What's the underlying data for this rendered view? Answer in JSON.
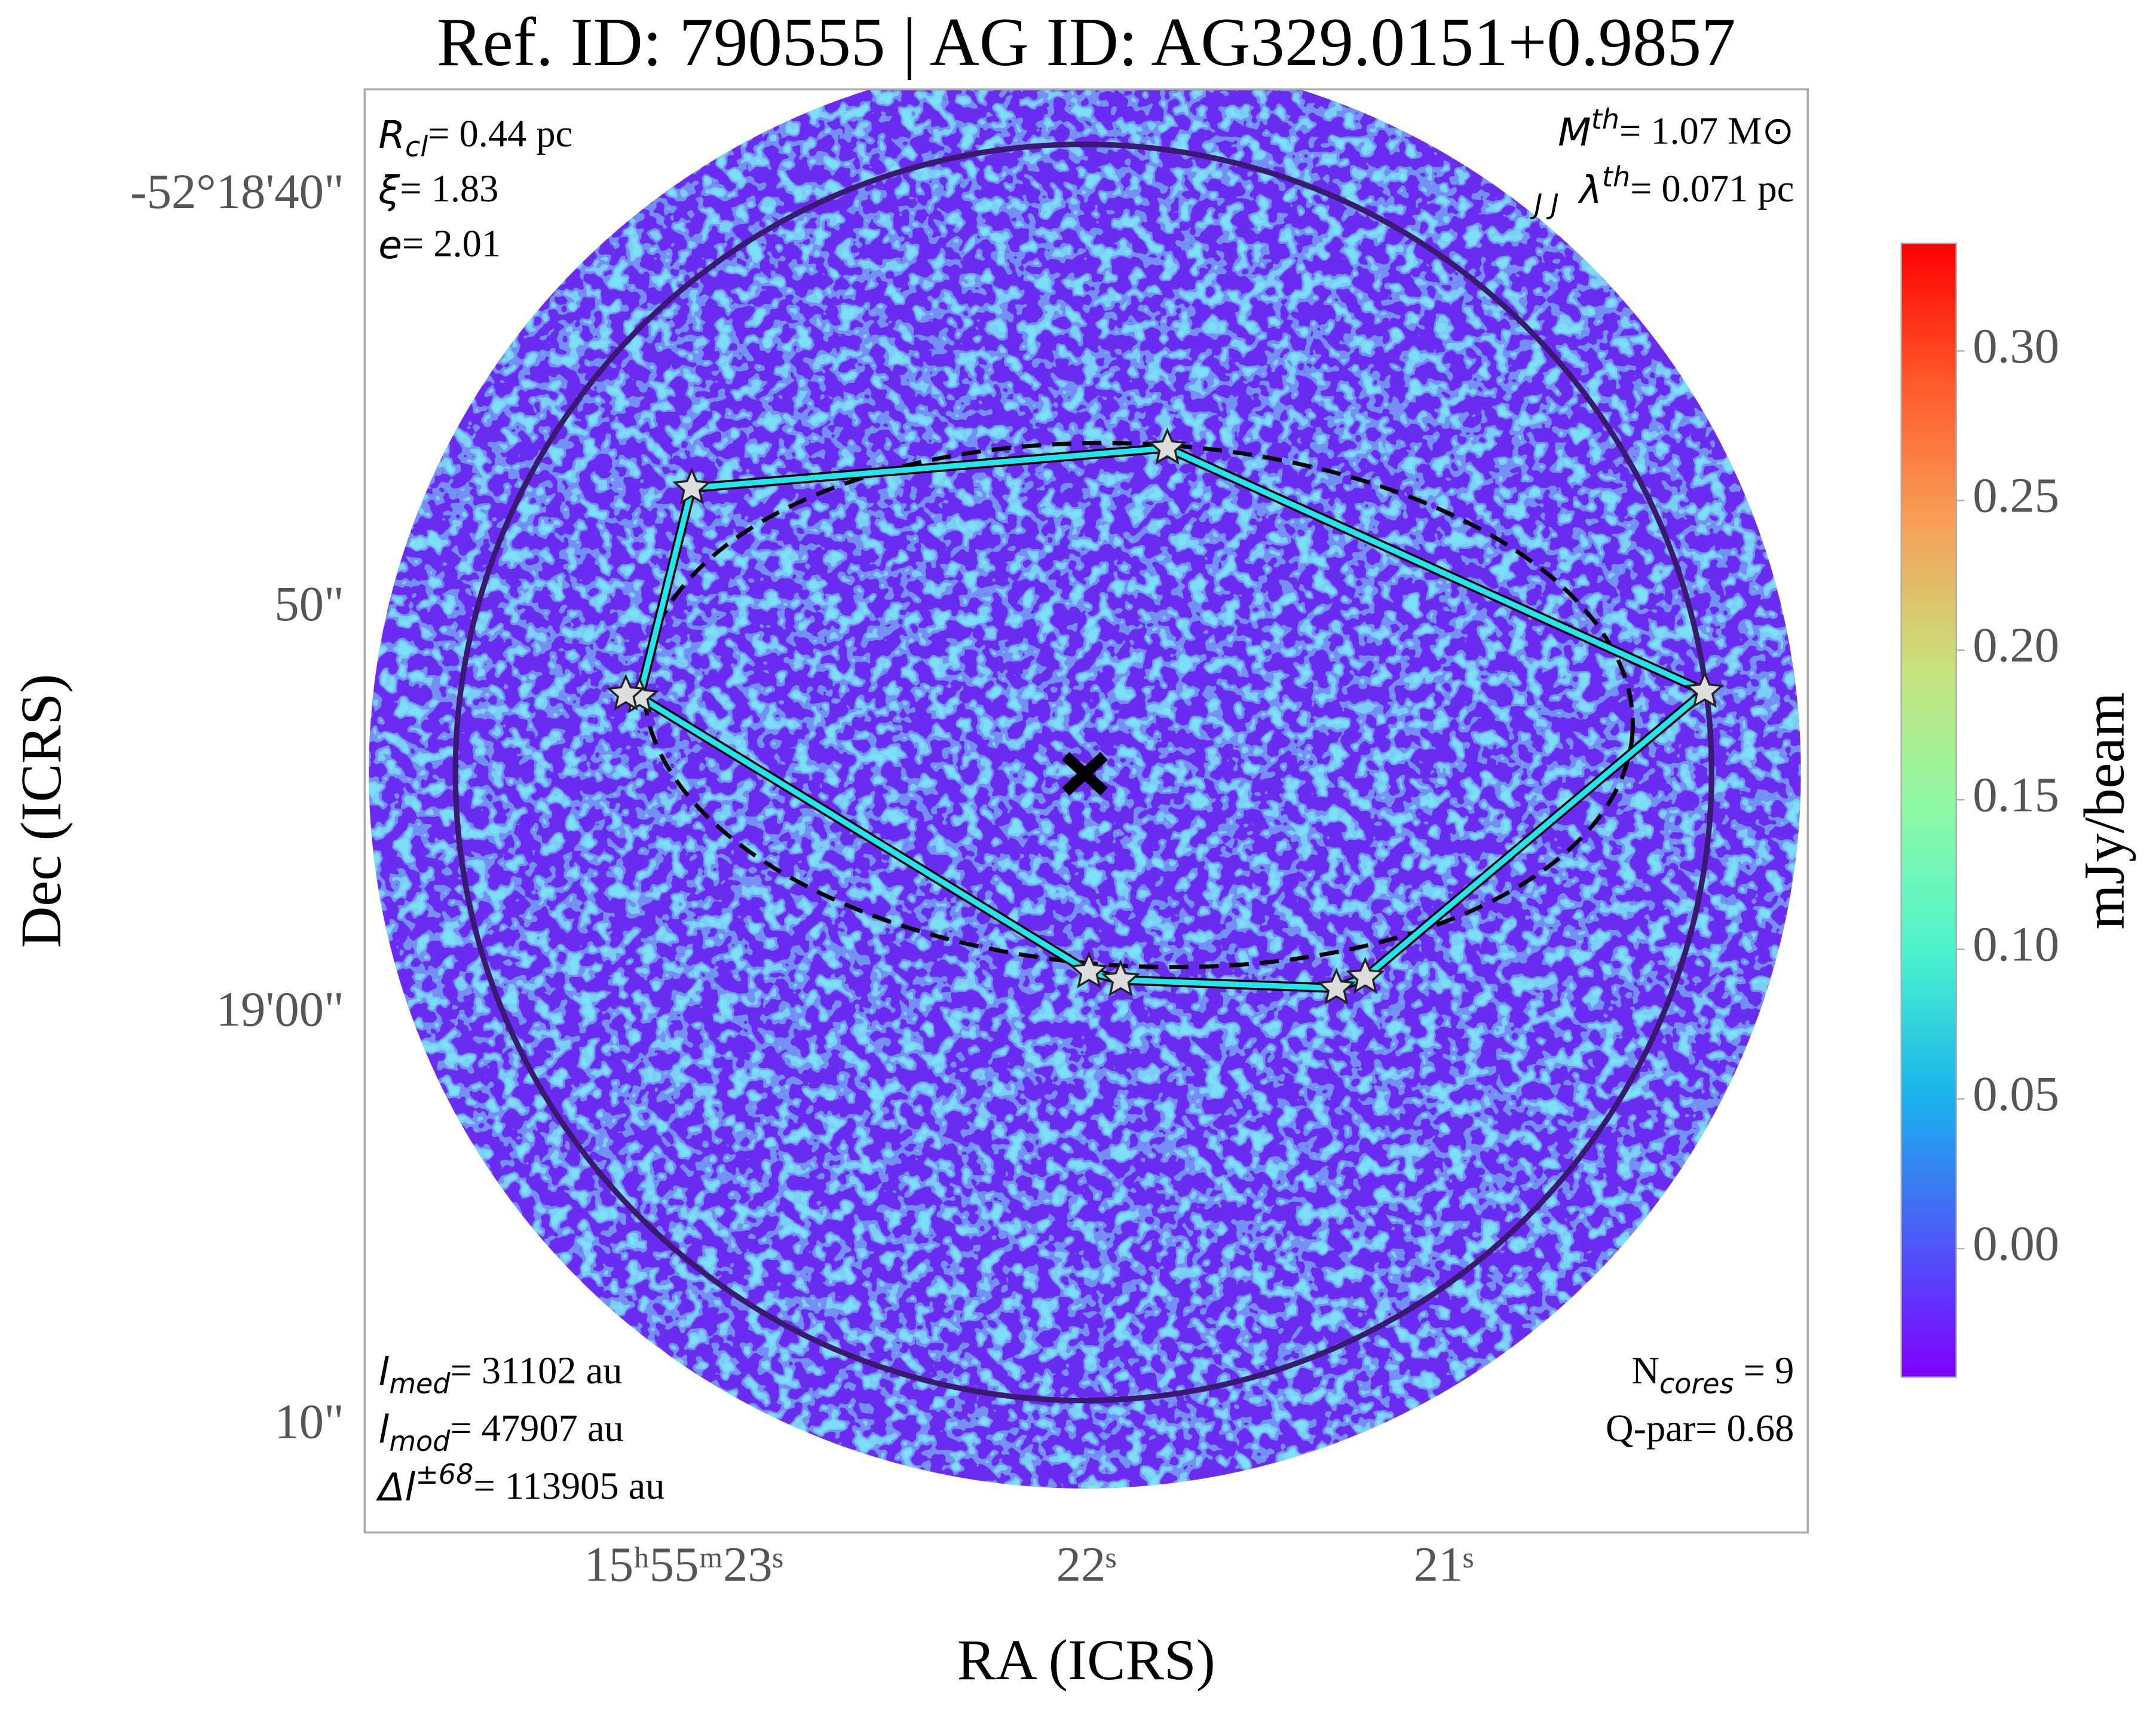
{
  "chart_data": {
    "type": "image",
    "title": "Ref. ID: 790555 | AG ID: AG329.0151+0.9857",
    "xlabel": "RA (ICRS)",
    "ylabel": "Dec (ICRS)",
    "xtick_labels": [
      "15ʰ55ᵐ23ˢ",
      "22ˢ",
      "21ˢ"
    ],
    "ytick_labels": [
      "-52°18'40\"",
      "50\"",
      "19'00\"",
      "10\""
    ],
    "annotations_top_left": [
      {
        "symbol": "R",
        "sub": "cl",
        "text": "= 0.44 pc"
      },
      {
        "symbol": "ξ",
        "text": "= 1.83"
      },
      {
        "symbol": "e",
        "text": "= 2.01"
      }
    ],
    "annotations_top_right": [
      {
        "symbol": "M",
        "sub": "J",
        "sup": "th",
        "text": "= 1.07 M⊙"
      },
      {
        "symbol": "λ",
        "sub": "J",
        "sup": "th",
        "text": "= 0.071 pc"
      }
    ],
    "annotations_bottom_left": [
      {
        "symbol": "l",
        "sub": "med",
        "text": "= 31102 au"
      },
      {
        "symbol": "l",
        "sub": "mod",
        "text": "= 47907 au"
      },
      {
        "symbol": "Δl",
        "sup": "±68",
        "text": "= 113905 au"
      }
    ],
    "annotations_bottom_right": [
      "N",
      "cores",
      " = 9",
      "Q-par= 0.68"
    ],
    "colorbar": {
      "label": "mJy/beam",
      "ylim": [
        -0.043,
        0.336
      ],
      "yticks": [
        {
          "value": 0,
          "label": "0.00"
        },
        {
          "value": 0.05,
          "label": "0.05"
        },
        {
          "value": 0.1,
          "label": "0.10"
        },
        {
          "value": 0.15,
          "label": "0.15"
        },
        {
          "value": 0.2,
          "label": "0.20"
        },
        {
          "value": 0.25,
          "label": "0.25"
        },
        {
          "value": 0.3,
          "label": "0.30"
        }
      ],
      "colors": [
        "#7f00ff",
        "#4a5cf7",
        "#19b4eb",
        "#4cf2ce",
        "#8cf9a5",
        "#c6e27c",
        "#f6a15a",
        "#ff5a2c",
        "#ff0000"
      ]
    }
  }
}
